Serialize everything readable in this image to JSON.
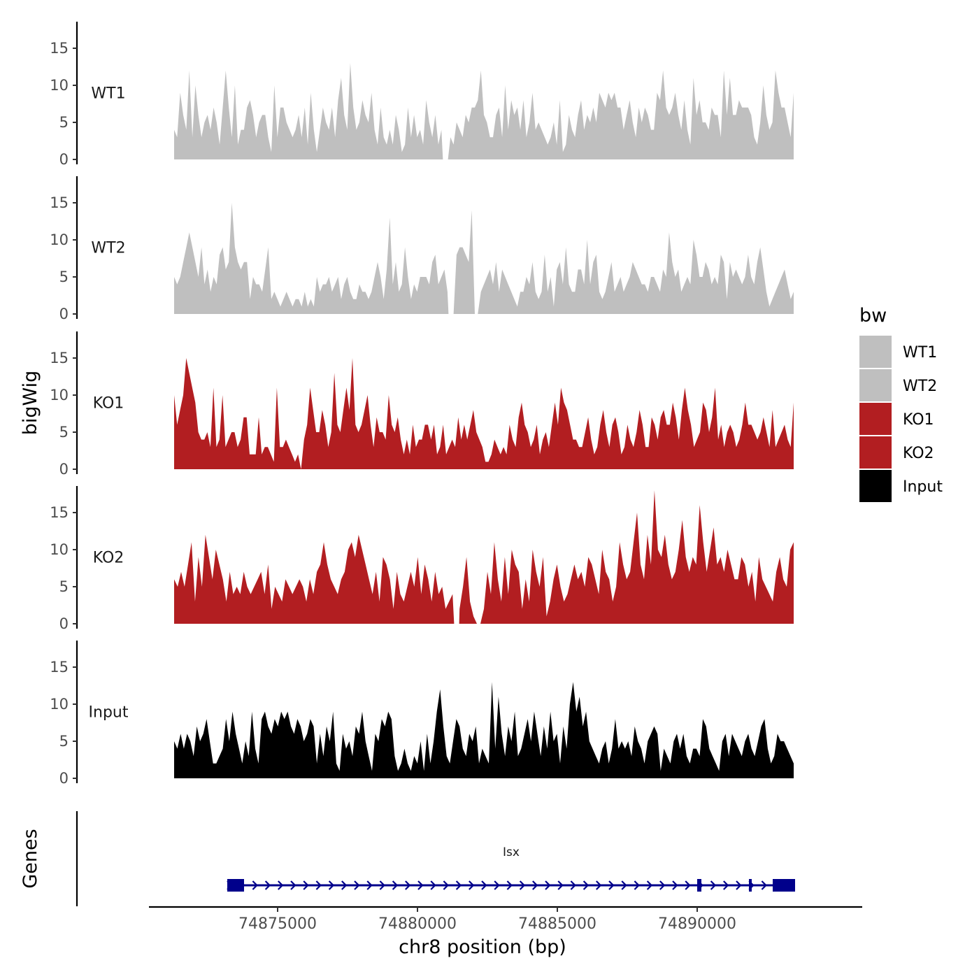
{
  "chart_data": {
    "type": "area",
    "ylabel": "bigWig",
    "xlabel": "chr8 position (bp)",
    "genes_label": "Genes",
    "x_range": [
      74871300,
      74893450
    ],
    "x_axis_range": [
      74870400,
      74895900
    ],
    "x_ticks": [
      74875000,
      74880000,
      74885000,
      74890000
    ],
    "y_range": [
      0,
      18.5
    ],
    "y_ticks": [
      0,
      5,
      10,
      15
    ],
    "legend": {
      "title": "bw",
      "entries": [
        {
          "label": "WT1",
          "color": "#bfbfbf"
        },
        {
          "label": "WT2",
          "color": "#bfbfbf"
        },
        {
          "label": "KO1",
          "color": "#b21e21"
        },
        {
          "label": "KO2",
          "color": "#b21e21"
        },
        {
          "label": "Input",
          "color": "#000000"
        }
      ]
    },
    "tracks": [
      {
        "name": "WT1",
        "color": "#bfbfbf",
        "gap_at": 74881000,
        "values": [
          4,
          3,
          9,
          6,
          4,
          12,
          3,
          10,
          6,
          3,
          5,
          6,
          4,
          7,
          5,
          2,
          7,
          12,
          7,
          3,
          10,
          2,
          4,
          4,
          7,
          8,
          6,
          3,
          5,
          6,
          6,
          3,
          1,
          10,
          3,
          7,
          7,
          5,
          4,
          3,
          4,
          6,
          3,
          7,
          2,
          9,
          4,
          1,
          4,
          7,
          5,
          4,
          7,
          3,
          8,
          11,
          6,
          4,
          13,
          7,
          4,
          5,
          8,
          6,
          5,
          9,
          4,
          2,
          7,
          3,
          2,
          4,
          2,
          6,
          4,
          1,
          2,
          7,
          3,
          6,
          3,
          4,
          2,
          8,
          5,
          3,
          6,
          2,
          4,
          0,
          1,
          3,
          2,
          5,
          4,
          3,
          6,
          5,
          7,
          7,
          8,
          12,
          6,
          5,
          3,
          3,
          6,
          7,
          3,
          10,
          4,
          8,
          6,
          7,
          4,
          8,
          3,
          5,
          9,
          4,
          5,
          4,
          3,
          2,
          3,
          5,
          2,
          8,
          1,
          2,
          6,
          4,
          3,
          6,
          8,
          4,
          6,
          5,
          7,
          5,
          9,
          8,
          7,
          9,
          8,
          9,
          7,
          7,
          4,
          6,
          8,
          5,
          3,
          7,
          5,
          7,
          6,
          4,
          4,
          9,
          8,
          12,
          7,
          6,
          7,
          9,
          6,
          4,
          8,
          4,
          2,
          11,
          6,
          8,
          5,
          5,
          4,
          7,
          6,
          6,
          3,
          12,
          6,
          11,
          6,
          6,
          8,
          7,
          7,
          7,
          6,
          3,
          2,
          5,
          10,
          6,
          4,
          5,
          12,
          9,
          7,
          7,
          5,
          3,
          9
        ]
      },
      {
        "name": "WT2",
        "color": "#bfbfbf",
        "gap_at": 74881200,
        "values": [
          5,
          4,
          5,
          7,
          9,
          11,
          9,
          7,
          5,
          9,
          4,
          6,
          3,
          5,
          4,
          8,
          9,
          6,
          7,
          15,
          9,
          7,
          6,
          7,
          7,
          2,
          5,
          4,
          4,
          3,
          6,
          9,
          2,
          3,
          2,
          1,
          2,
          3,
          2,
          1,
          2,
          2,
          1,
          3,
          1,
          2,
          1,
          5,
          3,
          4,
          4,
          5,
          3,
          4,
          5,
          2,
          4,
          5,
          3,
          2,
          2,
          4,
          3,
          3,
          2,
          3,
          5,
          7,
          5,
          2,
          6,
          13,
          4,
          7,
          3,
          4,
          9,
          5,
          2,
          4,
          3,
          5,
          5,
          5,
          4,
          7,
          8,
          4,
          5,
          6,
          3,
          5,
          8,
          8,
          9,
          9,
          8,
          7,
          14,
          0,
          0,
          3,
          4,
          5,
          6,
          4,
          7,
          3,
          6,
          5,
          4,
          3,
          2,
          1,
          3,
          3,
          5,
          4,
          7,
          3,
          2,
          3,
          8,
          3,
          5,
          1,
          6,
          7,
          4,
          9,
          4,
          3,
          3,
          6,
          6,
          4,
          10,
          4,
          7,
          8,
          3,
          2,
          3,
          5,
          7,
          3,
          4,
          5,
          3,
          4,
          5,
          7,
          6,
          5,
          4,
          4,
          3,
          5,
          5,
          4,
          3,
          6,
          5,
          11,
          7,
          5,
          6,
          3,
          4,
          5,
          4,
          10,
          8,
          5,
          5,
          7,
          6,
          4,
          5,
          4,
          8,
          7,
          2,
          7,
          5,
          6,
          5,
          4,
          5,
          8,
          5,
          4,
          7,
          9,
          6,
          3,
          1,
          2,
          3,
          4,
          5,
          6,
          4,
          2,
          3
        ]
      },
      {
        "name": "KO1",
        "color": "#b21e21",
        "gap_at": null,
        "values": [
          10,
          6,
          8,
          10,
          15,
          13,
          11,
          9,
          5,
          4,
          4,
          5,
          3,
          11,
          3,
          4,
          10,
          3,
          4,
          5,
          5,
          3,
          4,
          7,
          7,
          2,
          2,
          2,
          7,
          2,
          3,
          3,
          2,
          1,
          11,
          3,
          3,
          4,
          3,
          2,
          1,
          2,
          0,
          4,
          6,
          11,
          8,
          5,
          5,
          8,
          6,
          3,
          5,
          13,
          6,
          5,
          8,
          11,
          8,
          15,
          6,
          5,
          6,
          8,
          10,
          6,
          3,
          7,
          5,
          5,
          4,
          10,
          6,
          5,
          7,
          4,
          2,
          4,
          2,
          6,
          3,
          4,
          4,
          6,
          6,
          4,
          6,
          2,
          3,
          6,
          2,
          3,
          4,
          3,
          7,
          4,
          6,
          4,
          6,
          8,
          5,
          4,
          3,
          1,
          1,
          2,
          4,
          3,
          2,
          3,
          2,
          6,
          4,
          3,
          7,
          9,
          6,
          5,
          3,
          4,
          6,
          2,
          4,
          5,
          3,
          6,
          9,
          6,
          11,
          9,
          8,
          6,
          4,
          4,
          3,
          3,
          5,
          7,
          4,
          2,
          3,
          6,
          8,
          5,
          3,
          6,
          7,
          5,
          2,
          3,
          6,
          4,
          3,
          5,
          8,
          6,
          3,
          3,
          7,
          6,
          4,
          7,
          8,
          6,
          6,
          9,
          7,
          4,
          8,
          11,
          8,
          6,
          3,
          4,
          5,
          9,
          8,
          5,
          7,
          11,
          4,
          6,
          3,
          5,
          6,
          5,
          3,
          4,
          6,
          9,
          6,
          6,
          5,
          4,
          5,
          7,
          5,
          3,
          8,
          3,
          4,
          5,
          6,
          4,
          3,
          9
        ]
      },
      {
        "name": "KO2",
        "color": "#b21e21",
        "gap_at": 74881400,
        "values": [
          6,
          5,
          7,
          5,
          8,
          11,
          3,
          9,
          5,
          12,
          9,
          6,
          10,
          8,
          6,
          3,
          7,
          4,
          5,
          4,
          7,
          5,
          4,
          5,
          6,
          7,
          4,
          8,
          2,
          5,
          4,
          3,
          6,
          5,
          4,
          5,
          6,
          5,
          3,
          6,
          4,
          7,
          8,
          11,
          8,
          6,
          5,
          4,
          6,
          7,
          10,
          11,
          9,
          12,
          10,
          8,
          6,
          4,
          7,
          3,
          9,
          8,
          6,
          2,
          7,
          4,
          3,
          5,
          7,
          5,
          9,
          4,
          8,
          6,
          3,
          7,
          4,
          5,
          2,
          3,
          4,
          3,
          2,
          5,
          9,
          3,
          1,
          0,
          0,
          2,
          7,
          4,
          11,
          6,
          3,
          9,
          4,
          10,
          8,
          7,
          2,
          6,
          3,
          10,
          7,
          5,
          9,
          1,
          3,
          6,
          8,
          5,
          3,
          4,
          6,
          8,
          6,
          7,
          5,
          9,
          8,
          6,
          4,
          10,
          7,
          6,
          3,
          5,
          11,
          8,
          6,
          7,
          11,
          15,
          8,
          6,
          12,
          8,
          18,
          10,
          9,
          12,
          8,
          6,
          7,
          10,
          14,
          9,
          7,
          9,
          8,
          16,
          11,
          7,
          10,
          13,
          8,
          9,
          7,
          10,
          8,
          6,
          6,
          9,
          8,
          5,
          7,
          3,
          9,
          6,
          5,
          4,
          3,
          7,
          9,
          6,
          5,
          10,
          11
        ]
      },
      {
        "name": "Input",
        "color": "#000000",
        "gap_at": null,
        "values": [
          5,
          4,
          6,
          4,
          6,
          5,
          3,
          7,
          5,
          6,
          8,
          5,
          2,
          2,
          3,
          4,
          8,
          5,
          9,
          6,
          4,
          2,
          5,
          3,
          9,
          4,
          2,
          8,
          9,
          7,
          6,
          8,
          7,
          9,
          8,
          9,
          7,
          6,
          8,
          7,
          5,
          6,
          8,
          7,
          2,
          6,
          3,
          7,
          5,
          9,
          2,
          1,
          6,
          4,
          5,
          3,
          7,
          6,
          9,
          5,
          3,
          1,
          6,
          5,
          8,
          7,
          9,
          8,
          3,
          1,
          2,
          4,
          2,
          1,
          3,
          2,
          5,
          1,
          6,
          2,
          5,
          9,
          12,
          7,
          3,
          2,
          5,
          8,
          7,
          4,
          3,
          6,
          5,
          7,
          2,
          4,
          3,
          2,
          13,
          4,
          11,
          6,
          3,
          7,
          5,
          9,
          3,
          4,
          6,
          8,
          5,
          9,
          6,
          3,
          7,
          4,
          9,
          5,
          6,
          2,
          7,
          4,
          10,
          13,
          9,
          11,
          7,
          9,
          5,
          4,
          3,
          2,
          4,
          5,
          2,
          4,
          8,
          4,
          5,
          4,
          5,
          3,
          7,
          5,
          4,
          2,
          5,
          6,
          7,
          6,
          1,
          4,
          3,
          2,
          5,
          6,
          4,
          6,
          3,
          2,
          4,
          4,
          3,
          8,
          7,
          4,
          3,
          2,
          1,
          5,
          6,
          3,
          6,
          5,
          4,
          3,
          5,
          6,
          4,
          3,
          5,
          7,
          8,
          4,
          2,
          3,
          6,
          5,
          5,
          4,
          3,
          2
        ]
      }
    ],
    "gene": {
      "name": "Isx",
      "start": 74873200,
      "end": 74893500,
      "strand": "+",
      "exons": [
        [
          74873200,
          74873800
        ],
        [
          74890000,
          74890150
        ],
        [
          74891850,
          74891950
        ],
        [
          74892700,
          74893500
        ]
      ]
    }
  }
}
